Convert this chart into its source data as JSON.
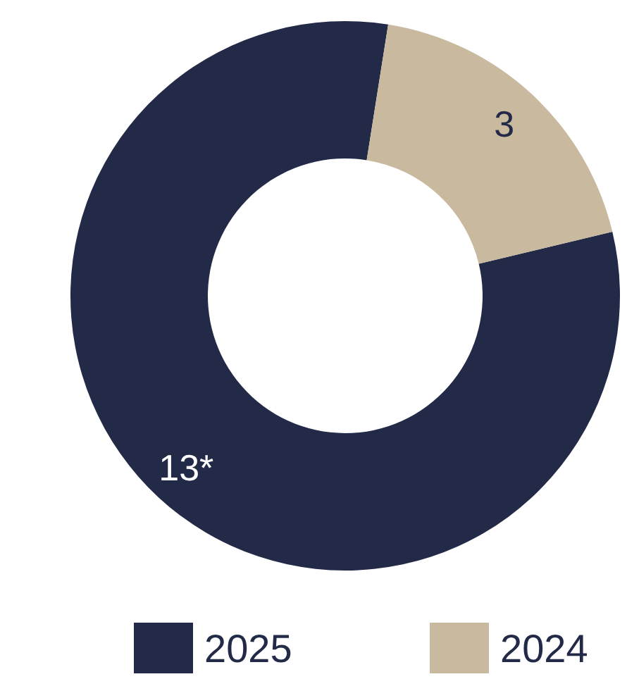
{
  "chart_data": {
    "type": "donut",
    "categories": [
      "2025",
      "2024"
    ],
    "values": [
      13,
      3
    ],
    "value_labels": [
      "13*",
      "3"
    ],
    "colors": [
      "#222a48",
      "#c8b99f"
    ],
    "legend": "bottom"
  }
}
